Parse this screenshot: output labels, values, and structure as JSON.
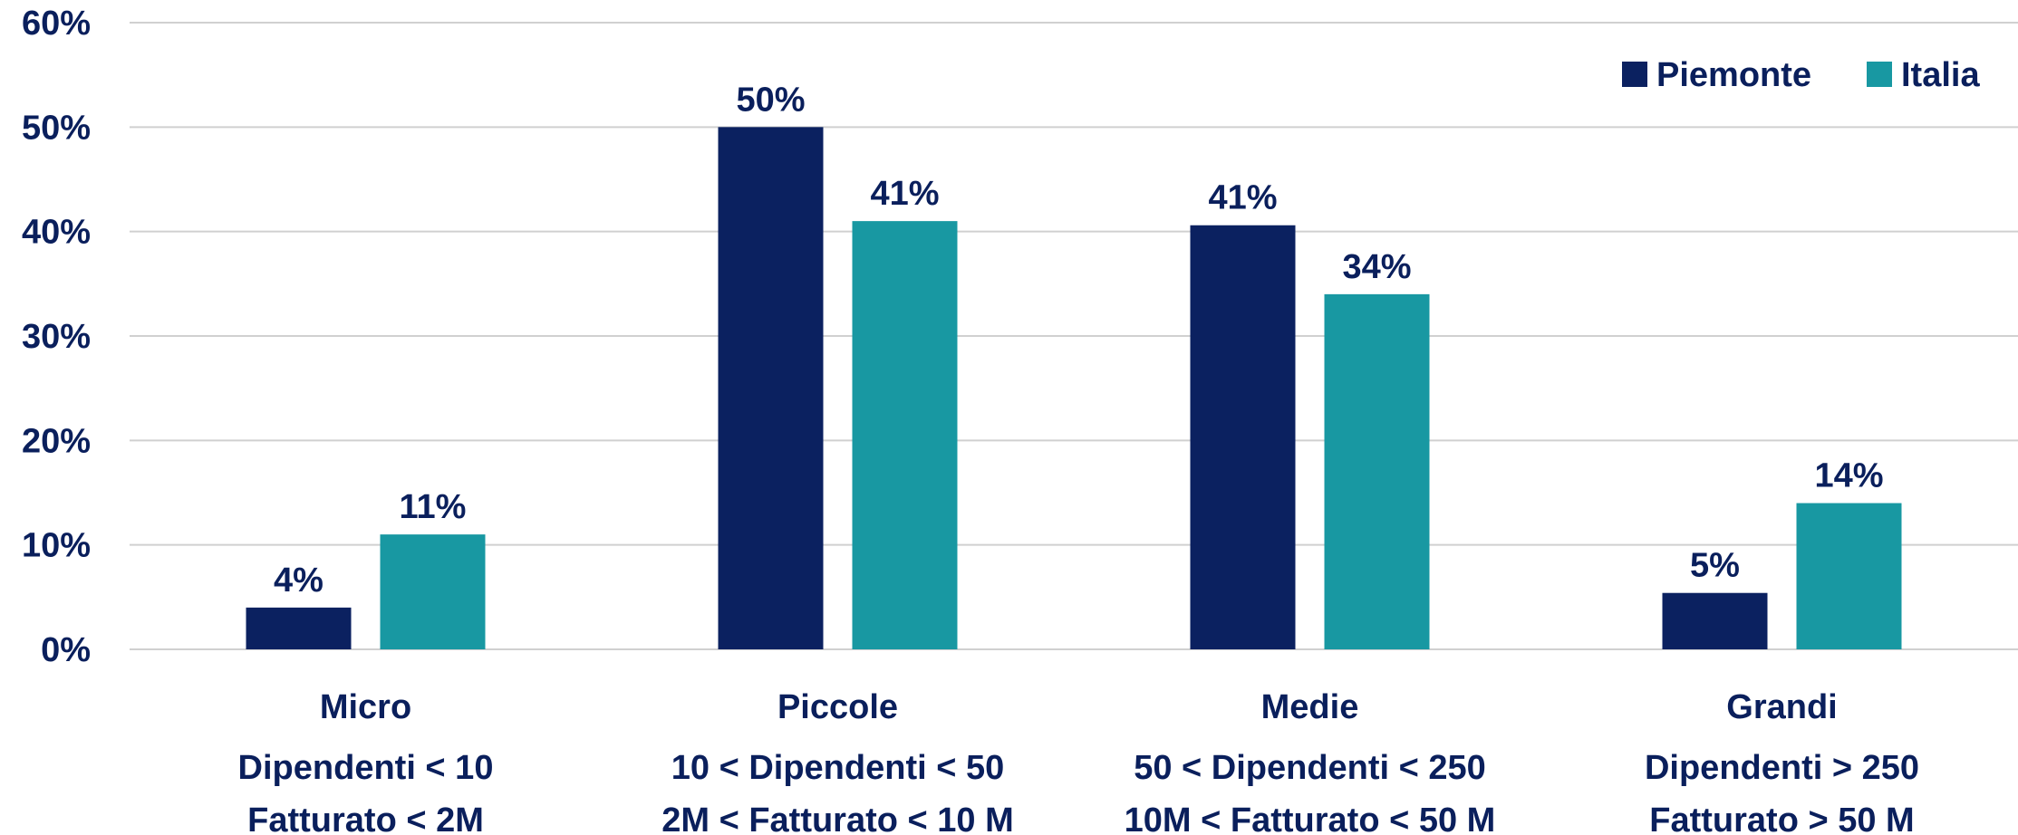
{
  "chart_data": {
    "type": "bar",
    "categories": [
      [
        "Micro",
        "Dipendenti < 10",
        "Fatturato < 2M"
      ],
      [
        "Piccole",
        "10 < Dipendenti < 50",
        "2M < Fatturato < 10 M"
      ],
      [
        "Medie",
        "50 < Dipendenti < 250",
        "10M < Fatturato < 50 M"
      ],
      [
        "Grandi",
        "Dipendenti > 250",
        "Fatturato > 50 M"
      ]
    ],
    "series": [
      {
        "name": "Piemonte",
        "color": "#0b2160",
        "values": [
          4,
          50,
          40.6,
          5.4
        ],
        "labels": [
          "4%",
          "50%",
          "41%",
          "5%"
        ]
      },
      {
        "name": "Italia",
        "color": "#1898a2",
        "values": [
          11,
          41,
          34,
          14
        ],
        "labels": [
          "11%",
          "41%",
          "34%",
          "14%"
        ]
      }
    ],
    "yticks": [
      "0%",
      "10%",
      "20%",
      "30%",
      "40%",
      "50%",
      "60%"
    ],
    "ylim": [
      0,
      60
    ],
    "grid": true,
    "legend_position": "top-right",
    "title": "",
    "xlabel": "",
    "ylabel": ""
  }
}
